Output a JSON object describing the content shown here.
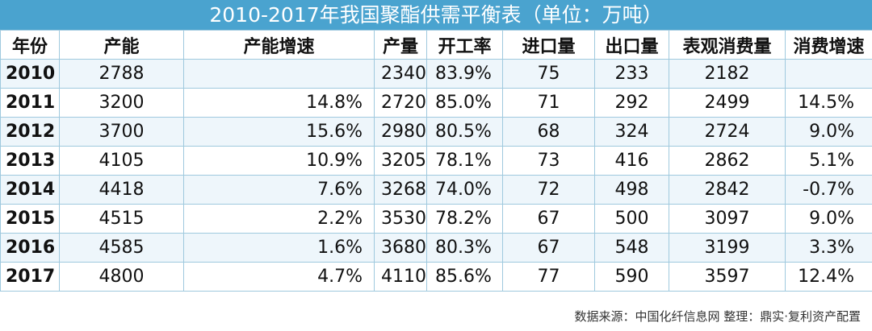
{
  "chart_data": {
    "type": "table",
    "title": "2010-2017年我国聚酯供需平衡表（单位：万吨）",
    "columns": [
      "年份",
      "产能",
      "产能增速",
      "产量",
      "开工率",
      "进口量",
      "出口量",
      "表观消费量",
      "消费增速"
    ],
    "rows": [
      [
        "2010",
        "2788",
        "",
        "2340",
        "83.9%",
        "75",
        "233",
        "2182",
        ""
      ],
      [
        "2011",
        "3200",
        "14.8%",
        "2720",
        "85.0%",
        "71",
        "292",
        "2499",
        "14.5%"
      ],
      [
        "2012",
        "3700",
        "15.6%",
        "2980",
        "80.5%",
        "68",
        "324",
        "2724",
        "9.0%"
      ],
      [
        "2013",
        "4105",
        "10.9%",
        "3205",
        "78.1%",
        "73",
        "416",
        "2862",
        "5.1%"
      ],
      [
        "2014",
        "4418",
        "7.6%",
        "3268",
        "74.0%",
        "72",
        "498",
        "2842",
        "-0.7%"
      ],
      [
        "2015",
        "4515",
        "2.2%",
        "3530",
        "78.2%",
        "67",
        "500",
        "3097",
        "9.0%"
      ],
      [
        "2016",
        "4585",
        "1.6%",
        "3680",
        "80.3%",
        "67",
        "548",
        "3199",
        "3.3%"
      ],
      [
        "2017",
        "4800",
        "4.7%",
        "4110",
        "85.6%",
        "77",
        "590",
        "3597",
        "12.4%"
      ]
    ],
    "source": "数据来源：中国化纤信息网  整理：鼎实·复利资产配置"
  },
  "colors": {
    "header_bg": "#4aa3cf",
    "border": "#9fc9de",
    "stripe": "#eef6fb"
  }
}
